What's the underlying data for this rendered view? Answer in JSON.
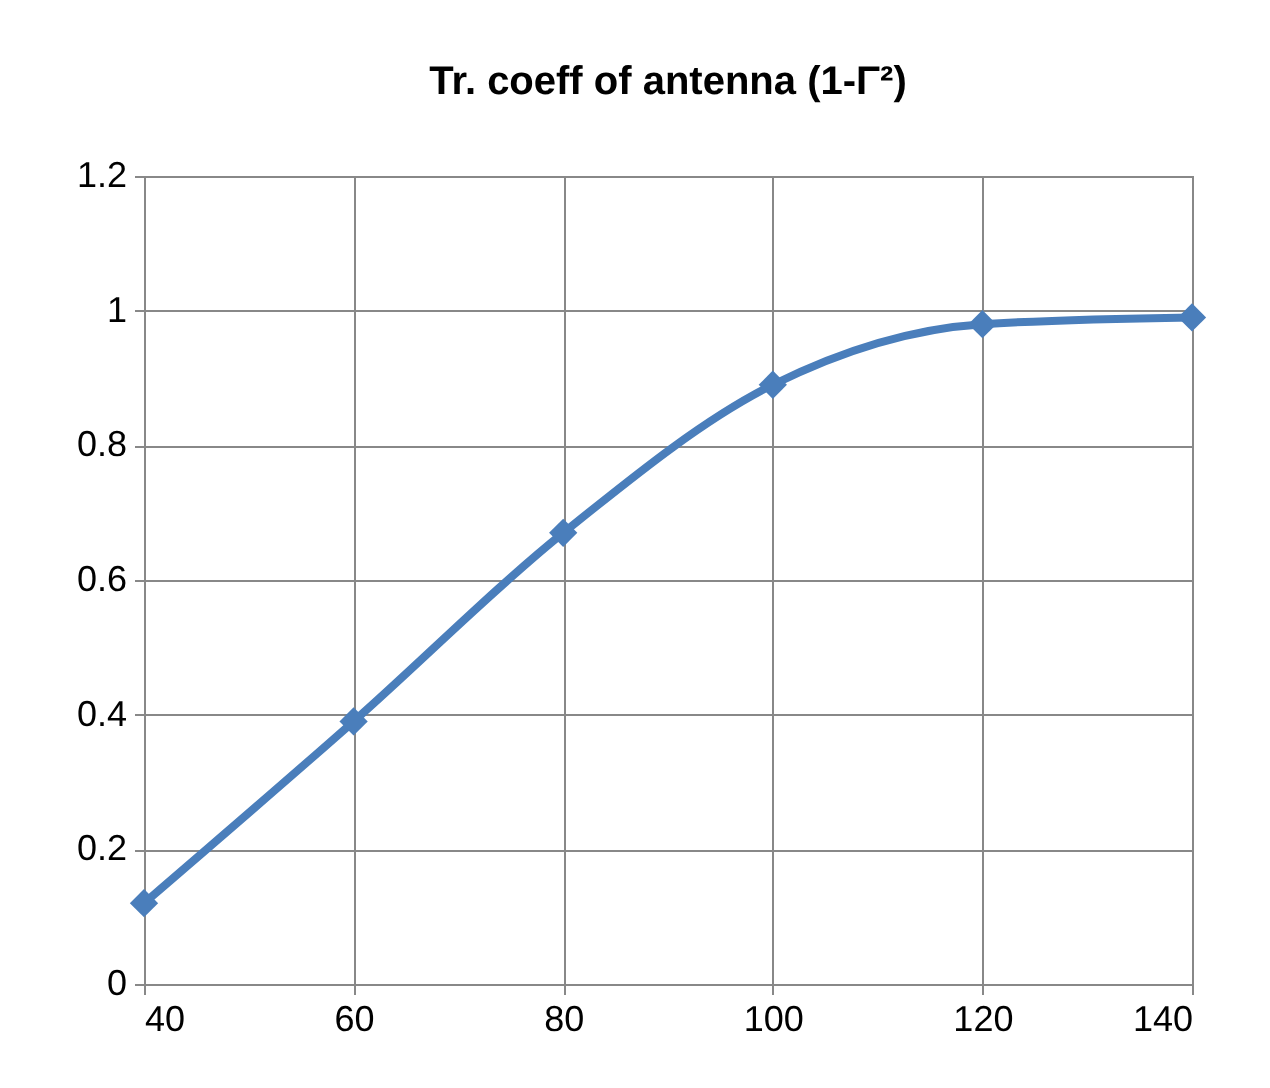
{
  "chart_data": {
    "type": "line",
    "title": "Tr. coeff of antenna (1-Γ²)",
    "x": [
      40,
      60,
      80,
      100,
      120,
      140
    ],
    "series": [
      {
        "color": "#4a7ebb",
        "values": [
          0.12,
          0.39,
          0.67,
          0.89,
          0.98,
          0.99
        ]
      }
    ],
    "xlim": [
      40,
      140
    ],
    "xticks": [
      40,
      60,
      80,
      100,
      120,
      140
    ],
    "ylim": [
      0,
      1.2
    ],
    "yticks": [
      0,
      0.2,
      0.4,
      0.6,
      0.8,
      1,
      1.2
    ],
    "grid": true,
    "marker": "diamond"
  }
}
